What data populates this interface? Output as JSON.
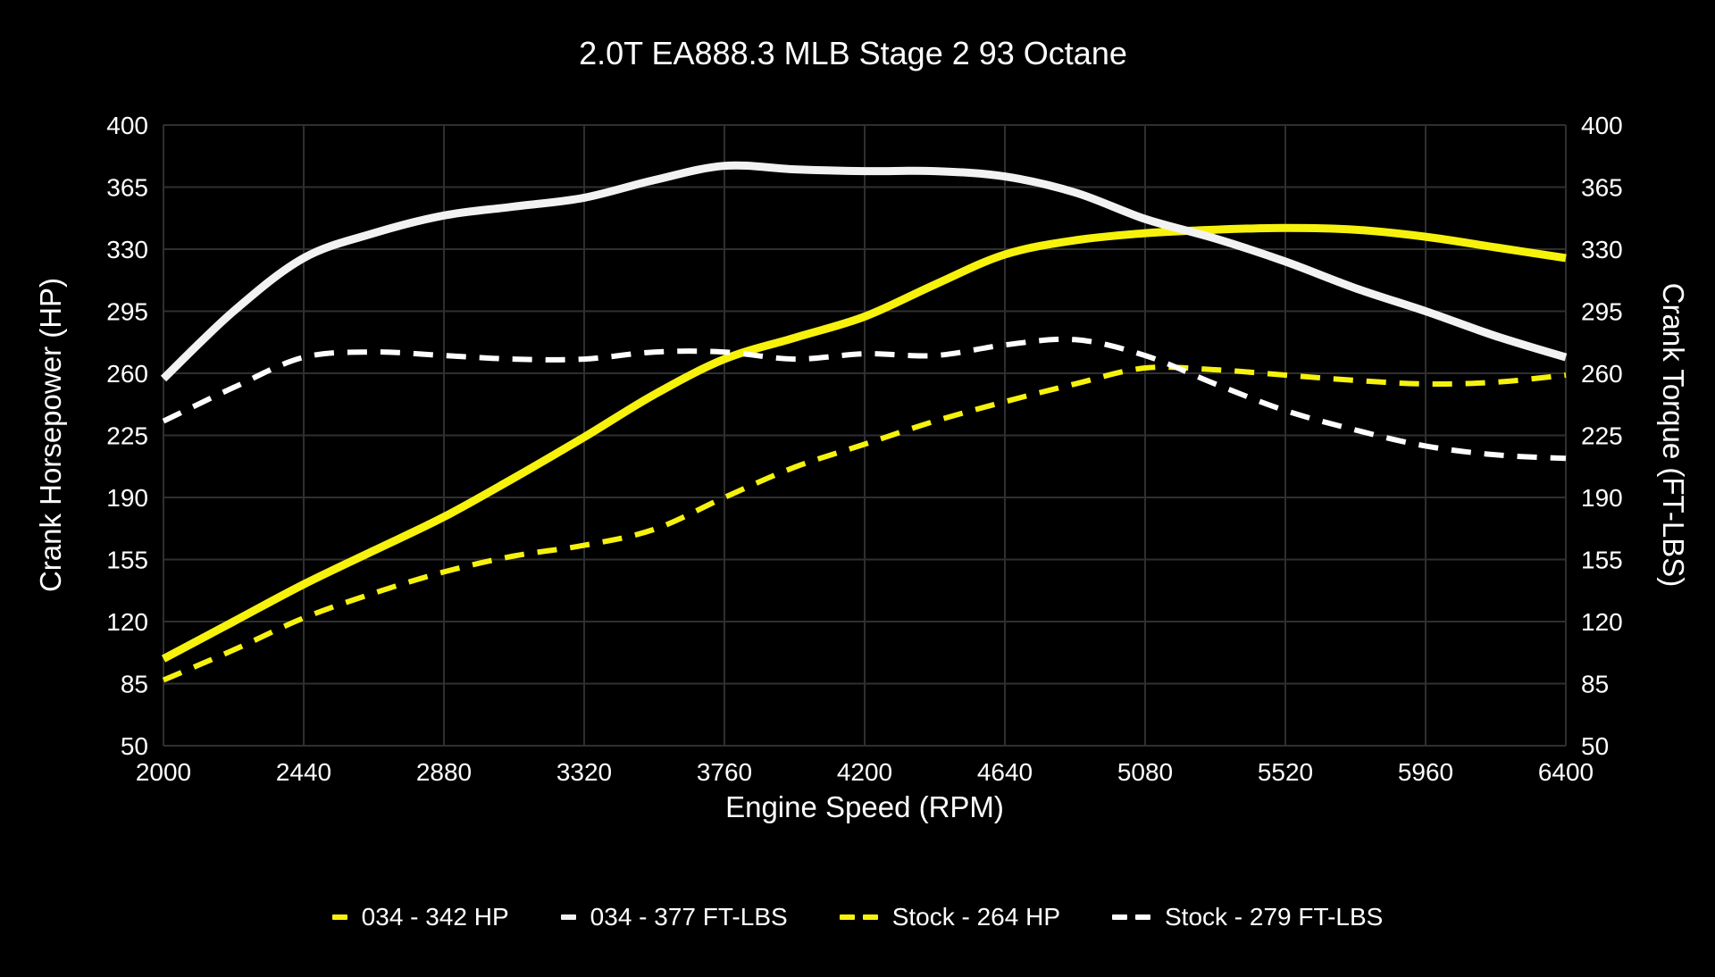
{
  "title": "2.0T EA888.3 MLB Stage 2 93 Octane",
  "colors": {
    "background": "#000000",
    "grid": "#2f2f2f",
    "text": "#ffffff",
    "accent_yellow": "#f7f20c",
    "accent_white": "#f2f2f2"
  },
  "chart_data": {
    "type": "line",
    "title": "2.0T EA888.3 MLB Stage 2 93 Octane",
    "xlabel": "Engine Speed (RPM)",
    "ylabel_left": "Crank Horsepower (HP)",
    "ylabel_right": "Crank Torque (FT-LBS)",
    "xlim": [
      2000,
      6400
    ],
    "ylim": [
      50,
      400
    ],
    "x_ticks": [
      2000,
      2440,
      2880,
      3320,
      3760,
      4200,
      4640,
      5080,
      5520,
      5960,
      6400
    ],
    "y_ticks": [
      50,
      85,
      120,
      155,
      190,
      225,
      260,
      295,
      330,
      365,
      400
    ],
    "grid": true,
    "legend_position": "bottom",
    "x": [
      2000,
      2220,
      2440,
      2660,
      2880,
      3100,
      3320,
      3540,
      3760,
      3980,
      4200,
      4420,
      4640,
      4860,
      5080,
      5300,
      5520,
      5740,
      5960,
      6180,
      6400
    ],
    "series": [
      {
        "name": "034 - 342 HP",
        "peak_value": 342,
        "unit": "HP",
        "color": "#f7f20c",
        "style": "solid",
        "values": [
          99,
          120,
          141,
          160,
          179,
          201,
          224,
          248,
          268,
          280,
          292,
          310,
          327,
          335,
          339,
          341,
          342,
          341,
          337,
          331,
          325
        ]
      },
      {
        "name": "034 - 377 FT-LBS",
        "peak_value": 377,
        "unit": "FT-LBS",
        "color": "#f2f2f2",
        "style": "solid",
        "values": [
          257,
          295,
          325,
          339,
          349,
          354,
          359,
          369,
          377,
          375,
          374,
          374,
          371,
          362,
          347,
          336,
          323,
          308,
          295,
          281,
          269
        ]
      },
      {
        "name": "Stock - 264 HP",
        "peak_value": 264,
        "unit": "HP",
        "color": "#f7f20c",
        "style": "dashed",
        "values": [
          87,
          104,
          122,
          136,
          148,
          157,
          163,
          172,
          190,
          207,
          220,
          233,
          244,
          254,
          263,
          262,
          259,
          256,
          254,
          255,
          259
        ]
      },
      {
        "name": "Stock - 279 FT-LBS",
        "peak_value": 279,
        "unit": "FT-LBS",
        "color": "#ffffff",
        "style": "dashed",
        "values": [
          233,
          252,
          269,
          272,
          270,
          268,
          268,
          272,
          272,
          268,
          271,
          270,
          276,
          279,
          270,
          254,
          239,
          228,
          219,
          214,
          212
        ]
      }
    ]
  }
}
